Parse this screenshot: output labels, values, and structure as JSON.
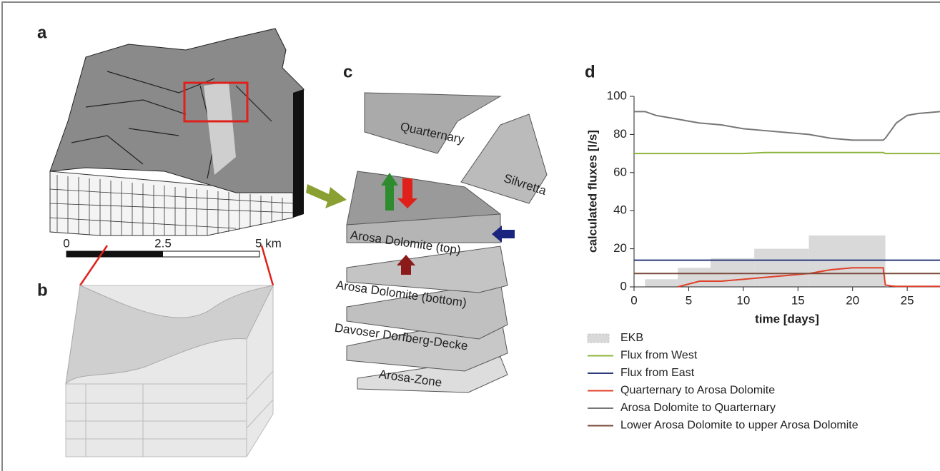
{
  "panels": {
    "a": "a",
    "b": "b",
    "c": "c",
    "scale_bar": [
      "0",
      "2.5",
      "5 km"
    ],
    "layers": [
      "Quarternary",
      "Silvretta",
      "Arosa Dolomite (top)",
      "Arosa Dolomite (bottom)",
      "Davoser Dorfberg-Decke",
      "Arosa-Zone"
    ]
  },
  "chart_data": {
    "type": "line",
    "title": "d",
    "xlabel": "time [days]",
    "ylabel": "calculated fluxes  [l/s]",
    "xlim": [
      0,
      28
    ],
    "ylim": [
      0,
      100
    ],
    "xticks": [
      0,
      5,
      10,
      15,
      20,
      25
    ],
    "yticks": [
      0,
      20,
      40,
      60,
      80,
      100
    ],
    "histogram": {
      "name": "EKB",
      "color": "#d9d9d9",
      "bins": [
        1,
        4,
        7,
        11,
        16,
        23
      ],
      "counts": [
        4,
        10,
        15,
        20,
        27
      ]
    },
    "x": [
      0,
      1,
      2,
      3,
      4,
      5,
      6,
      8,
      10,
      12,
      14,
      16,
      18,
      20,
      22,
      22.8,
      23,
      23.5,
      24,
      25,
      26,
      27,
      28
    ],
    "series": [
      {
        "name": "Flux from West",
        "color": "#8db43c",
        "values": [
          70,
          70,
          70,
          70,
          70,
          70,
          70,
          70,
          70,
          70.5,
          70.5,
          70.5,
          70.5,
          70.5,
          70.5,
          70.5,
          70,
          70,
          70,
          70,
          70,
          70,
          70
        ]
      },
      {
        "name": "Flux from East",
        "color": "#2b3a7a",
        "values": [
          14,
          14,
          14,
          14,
          14,
          14,
          14,
          14,
          14,
          14,
          14,
          14,
          14,
          14,
          14,
          14,
          14,
          14,
          14,
          14,
          14,
          14,
          14
        ]
      },
      {
        "name": "Quarternary to Arosa Dolomite",
        "color": "#e0402a",
        "values": [
          null,
          null,
          null,
          null,
          0,
          1.5,
          3,
          3,
          4,
          5,
          6,
          7,
          9,
          10,
          10,
          10,
          1,
          0.5,
          0.3,
          0.3,
          0.3,
          0.3,
          0.3
        ]
      },
      {
        "name": "Arosa Dolomite to Quarternary",
        "color": "#777777",
        "values": [
          92,
          92,
          90,
          89,
          88,
          87,
          86,
          85,
          83,
          82,
          81,
          80,
          78,
          77,
          77,
          77,
          78,
          82,
          86,
          90,
          91,
          91.5,
          92
        ]
      },
      {
        "name": "Lower Arosa Dolomite to upper Arosa Dolomite",
        "color": "#7a4a3a",
        "values": [
          7,
          7,
          7,
          7,
          7,
          7,
          7,
          7,
          7,
          7,
          7,
          7,
          7,
          7,
          7,
          7,
          7,
          7,
          7,
          7,
          7,
          7,
          7
        ]
      }
    ]
  }
}
